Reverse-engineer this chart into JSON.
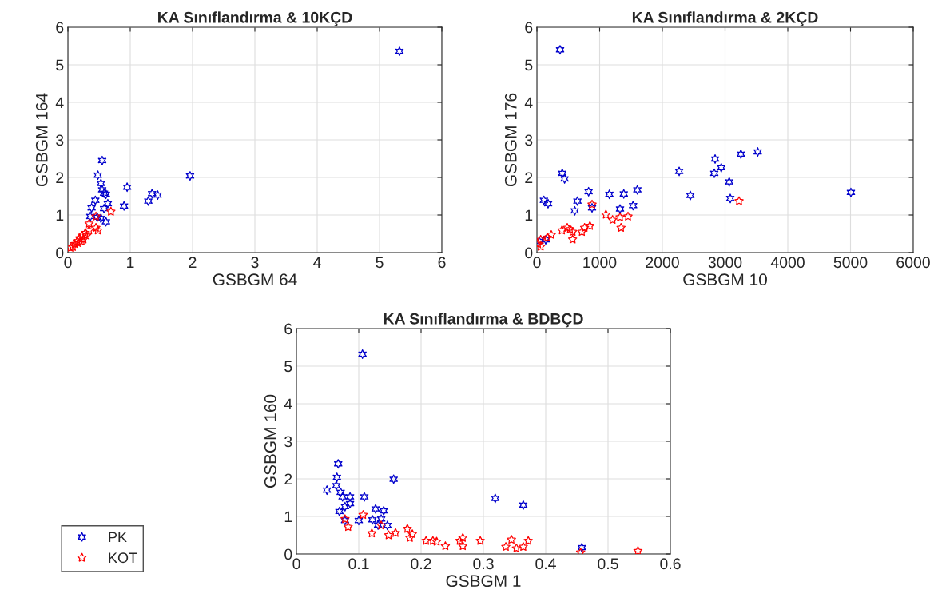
{
  "chart_data": [
    {
      "type": "scatter",
      "title": "KA Sınıflandırma & 10KÇD",
      "xlabel": "GSBGM 64",
      "ylabel": "GSBGM 164",
      "xlim": [
        0,
        6
      ],
      "ylim": [
        0,
        6
      ],
      "xticks": [
        0,
        1,
        2,
        3,
        4,
        5,
        6
      ],
      "yticks": [
        0,
        1,
        2,
        3,
        4,
        5,
        6
      ],
      "grid": true,
      "legend": "bottom left",
      "series": [
        {
          "name": "PK",
          "color": "#0000cc",
          "marker": "cross",
          "x": [
            5.32,
            0.55,
            0.48,
            0.53,
            0.55,
            0.61,
            0.95,
            0.44,
            0.38,
            0.64,
            0.58,
            0.9,
            1.29,
            1.35,
            1.44,
            1.96,
            0.36,
            0.47,
            0.53,
            0.61,
            0.58
          ],
          "values": [
            5.36,
            2.45,
            2.06,
            1.84,
            1.67,
            1.55,
            1.74,
            1.39,
            1.19,
            1.3,
            1.17,
            1.24,
            1.37,
            1.57,
            1.53,
            2.04,
            0.96,
            0.94,
            0.91,
            0.82,
            1.58
          ]
        },
        {
          "name": "KOT",
          "color": "#ff0000",
          "marker": "star",
          "x": [
            0.69,
            0.45,
            0.34,
            0.45,
            0.48,
            0.34,
            0.28,
            0.23,
            0.19,
            0.15,
            0.11,
            0.04,
            0.2,
            0.25,
            0.17,
            0.08,
            0.3,
            0.22
          ],
          "values": [
            1.09,
            0.96,
            0.77,
            0.66,
            0.59,
            0.59,
            0.52,
            0.45,
            0.38,
            0.3,
            0.23,
            0.13,
            null,
            0.35,
            0.25,
            0.15,
            0.45,
            0.3
          ]
        }
      ]
    },
    {
      "type": "scatter",
      "title": "KA Sınıflandırma & 2KÇD",
      "xlabel": "GSBGM 10",
      "ylabel": "GSBGM 176",
      "xlim": [
        0,
        6000
      ],
      "ylim": [
        0,
        6
      ],
      "xticks": [
        0,
        1000,
        2000,
        3000,
        4000,
        5000,
        6000
      ],
      "yticks": [
        0,
        1,
        2,
        3,
        4,
        5,
        6
      ],
      "grid": true,
      "series": [
        {
          "color": "#0000cc",
          "marker": "cross",
          "x": [
            369,
            404,
            441,
            111,
            178,
            824,
            646,
            603,
            879,
            1155,
            1385,
            1601,
            1325,
            1533,
            2268,
            2446,
            2841,
            2828,
            2939,
            3066,
            3083,
            3252,
            3520,
            5006,
            38,
            140
          ],
          "values": [
            5.4,
            2.11,
            1.96,
            1.39,
            1.3,
            1.62,
            1.37,
            1.11,
            1.19,
            1.55,
            1.56,
            1.67,
            1.16,
            1.25,
            2.16,
            1.52,
            2.49,
            2.11,
            2.26,
            1.88,
            1.44,
            2.62,
            2.68,
            1.6,
            0.3,
            0.34
          ]
        },
        {
          "color": "#ff0000",
          "marker": "star",
          "x": [
            879,
            1100,
            1206,
            1325,
            1452,
            1341,
            3223,
            484,
            569,
            569,
            717,
            845,
            760,
            527,
            229,
            166,
            60,
            60,
            17,
            399
          ],
          "values": [
            1.28,
            1.01,
            0.87,
            0.94,
            0.96,
            0.66,
            1.37,
            0.66,
            0.55,
            0.35,
            0.55,
            0.71,
            0.66,
            0.62,
            0.47,
            0.4,
            0.34,
            0.16,
            0.23,
            0.59
          ]
        }
      ]
    },
    {
      "type": "scatter",
      "title": "KA Sınıflandırma & BDBÇD",
      "xlabel": "GSBGM 1",
      "ylabel": "GSBGM 160",
      "xlim": [
        0,
        0.6
      ],
      "ylim": [
        0,
        6
      ],
      "xticks": [
        0,
        0.1,
        0.2,
        0.3,
        0.4,
        0.5,
        0.6
      ],
      "yticks": [
        0,
        1,
        2,
        3,
        4,
        5,
        6
      ],
      "grid": true,
      "series": [
        {
          "color": "#0000cc",
          "marker": "cross",
          "x": [
            0.106,
            0.067,
            0.065,
            0.064,
            0.049,
            0.071,
            0.074,
            0.086,
            0.086,
            0.078,
            0.069,
            0.109,
            0.156,
            0.127,
            0.14,
            0.122,
            0.1,
            0.078,
            0.136,
            0.146,
            0.131,
            0.319,
            0.364,
            0.458
          ],
          "values": [
            5.32,
            2.4,
            2.04,
            1.82,
            1.7,
            1.64,
            1.52,
            1.52,
            1.34,
            1.26,
            1.13,
            1.52,
            1.99,
            1.2,
            1.15,
            0.91,
            0.89,
            0.89,
            0.93,
            0.76,
            0.77,
            1.48,
            1.3,
            0.17
          ]
        },
        {
          "color": "#ff0000",
          "marker": "star",
          "x": [
            0.107,
            0.078,
            0.083,
            0.121,
            0.148,
            0.159,
            0.136,
            0.178,
            0.186,
            0.182,
            0.208,
            0.219,
            0.225,
            0.239,
            0.262,
            0.267,
            0.267,
            0.295,
            0.336,
            0.345,
            0.353,
            0.364,
            0.372,
            0.456,
            0.548
          ],
          "values": [
            1.04,
            0.93,
            0.72,
            0.55,
            0.5,
            0.56,
            0.76,
            0.67,
            0.53,
            0.43,
            0.35,
            0.35,
            0.33,
            0.21,
            0.35,
            0.43,
            0.21,
            0.35,
            0.19,
            0.38,
            0.15,
            0.19,
            0.35,
            0.04,
            0.08
          ]
        }
      ]
    }
  ]
}
